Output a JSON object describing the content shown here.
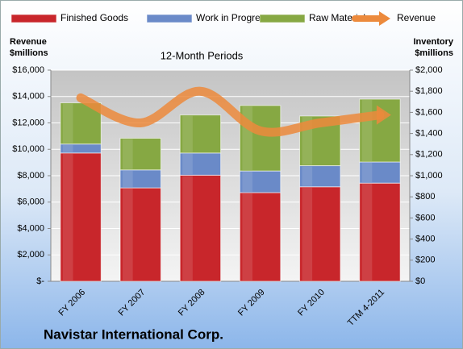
{
  "chart_data": {
    "type": "stacked-bar-line",
    "title": "Navistar International Corp.",
    "subtitle": "12-Month Periods",
    "ylabel": [
      "Revenue",
      "$millions"
    ],
    "y2label": [
      "Inventory",
      "$millions"
    ],
    "categories": [
      "FY 2006",
      "FY 2007",
      "FY 2008",
      "FY 2009",
      "FY 2010",
      "TTM 4-2011"
    ],
    "series": [
      {
        "name": "Finished Goods",
        "color": "#c8262b",
        "axis": "y2",
        "kind": "bar",
        "values": [
          1215,
          885,
          1005,
          840,
          895,
          930
        ]
      },
      {
        "name": "Work in Progress",
        "color": "#6a8ac8",
        "axis": "y2",
        "kind": "bar",
        "values": [
          85,
          170,
          210,
          205,
          200,
          200
        ]
      },
      {
        "name": "Raw Materials",
        "color": "#86a843",
        "axis": "y2",
        "kind": "bar",
        "values": [
          390,
          300,
          360,
          620,
          470,
          595
        ]
      },
      {
        "name": "Revenue",
        "color": "#ec8a3c",
        "axis": "y",
        "kind": "line",
        "values": [
          13900,
          12000,
          14400,
          11400,
          12000,
          12600
        ]
      }
    ],
    "ylim": [
      0,
      16000
    ],
    "yticks": [
      {
        "value": 0,
        "label": "$-"
      },
      {
        "value": 2000,
        "label": "$2,000"
      },
      {
        "value": 4000,
        "label": "$4,000"
      },
      {
        "value": 6000,
        "label": "$6,000"
      },
      {
        "value": 8000,
        "label": "$8,000"
      },
      {
        "value": 10000,
        "label": "$10,000"
      },
      {
        "value": 12000,
        "label": "$12,000"
      },
      {
        "value": 14000,
        "label": "$14,000"
      },
      {
        "value": 16000,
        "label": "$16,000"
      }
    ],
    "y2lim": [
      0,
      2000
    ],
    "y2ticks": [
      {
        "value": 0,
        "label": "$0"
      },
      {
        "value": 200,
        "label": "$200"
      },
      {
        "value": 400,
        "label": "$400"
      },
      {
        "value": 600,
        "label": "$600"
      },
      {
        "value": 800,
        "label": "$800"
      },
      {
        "value": 1000,
        "label": "$1,000"
      },
      {
        "value": 1200,
        "label": "$1,200"
      },
      {
        "value": 1400,
        "label": "$1,400"
      },
      {
        "value": 1600,
        "label": "$1,600"
      },
      {
        "value": 1800,
        "label": "$1,800"
      },
      {
        "value": 2000,
        "label": "$2,000"
      }
    ],
    "grid": true
  }
}
